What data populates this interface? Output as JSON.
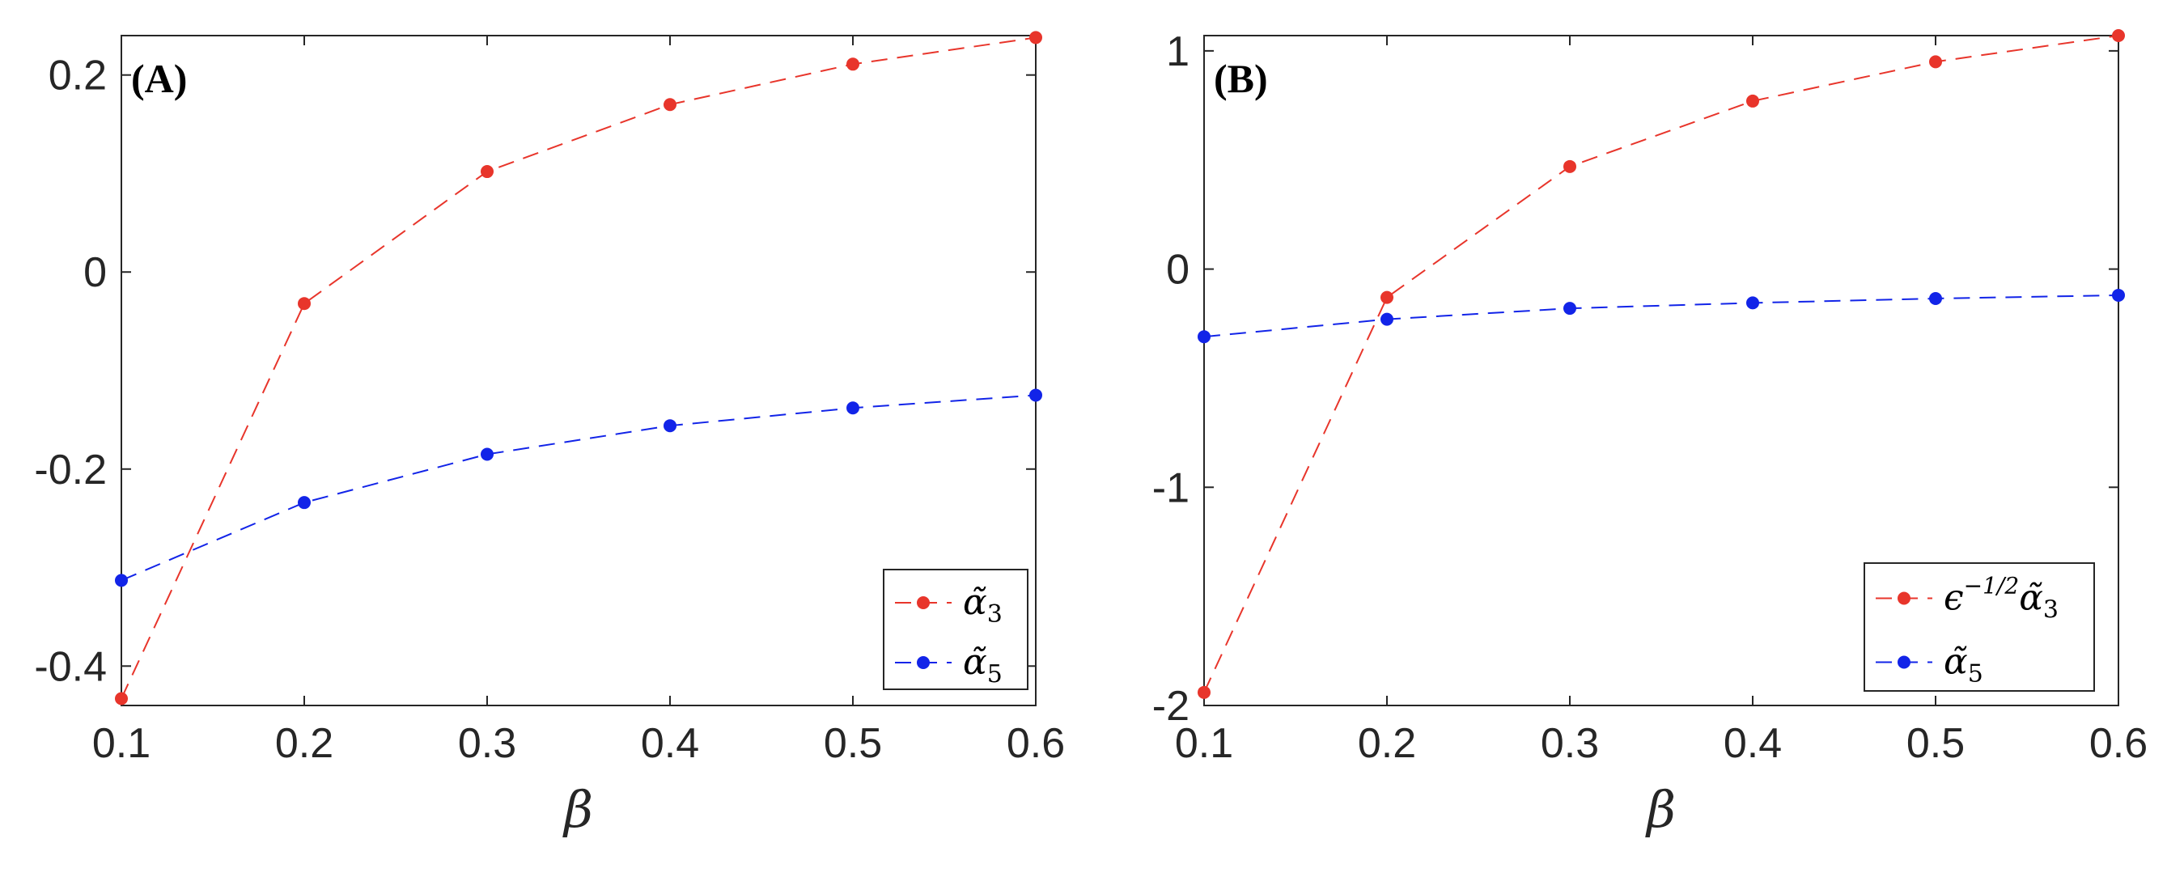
{
  "chart_data": [
    {
      "type": "line",
      "panel_label": "(A)",
      "xlabel": "β",
      "ylabel": "",
      "xlim": [
        0.1,
        0.6
      ],
      "ylim": [
        -0.44,
        0.24
      ],
      "x": [
        0.1,
        0.2,
        0.3,
        0.4,
        0.5,
        0.6
      ],
      "xticks": [
        "0.1",
        "0.2",
        "0.3",
        "0.4",
        "0.5",
        "0.6"
      ],
      "yticks": [
        {
          "value": 0.2,
          "label": "0.2"
        },
        {
          "value": 0,
          "label": "0"
        },
        {
          "value": -0.2,
          "label": "-0.2"
        },
        {
          "value": -0.4,
          "label": "-0.4"
        }
      ],
      "series": [
        {
          "name": "α̃3",
          "legend": {
            "base": "α̃",
            "sup": "",
            "sub": "3"
          },
          "color": "#e8352b",
          "marker": "circle",
          "line": "dashed",
          "values": [
            -0.433,
            -0.032,
            0.102,
            0.17,
            0.211,
            0.238
          ]
        },
        {
          "name": "α̃5",
          "legend": {
            "base": "α̃",
            "sup": "",
            "sub": "5"
          },
          "color": "#1224e8",
          "marker": "circle",
          "line": "dashed",
          "values": [
            -0.313,
            -0.234,
            -0.185,
            -0.156,
            -0.138,
            -0.125
          ]
        }
      ],
      "legend_position": "bottom-right",
      "grid": false
    },
    {
      "type": "line",
      "panel_label": "(B)",
      "xlabel": "β",
      "ylabel": "",
      "xlim": [
        0.1,
        0.6
      ],
      "ylim": [
        -2.0,
        1.07
      ],
      "x": [
        0.1,
        0.2,
        0.3,
        0.4,
        0.5,
        0.6
      ],
      "xticks": [
        "0.1",
        "0.2",
        "0.3",
        "0.4",
        "0.5",
        "0.6"
      ],
      "yticks": [
        {
          "value": 1,
          "label": "1"
        },
        {
          "value": 0,
          "label": "0"
        },
        {
          "value": -1,
          "label": "-1"
        },
        {
          "value": -2,
          "label": "-2"
        }
      ],
      "series": [
        {
          "name": "ϵ−1/2α̃3",
          "legend": {
            "base": "ϵ",
            "sup": "−1/2",
            "base2": "α̃",
            "sub": "3"
          },
          "color": "#e8352b",
          "marker": "circle",
          "line": "dashed",
          "values": [
            -1.94,
            -0.13,
            0.47,
            0.77,
            0.95,
            1.07
          ]
        },
        {
          "name": "α̃5",
          "legend": {
            "base": "α̃",
            "sup": "",
            "sub": "5"
          },
          "color": "#1224e8",
          "marker": "circle",
          "line": "dashed",
          "values": [
            -0.31,
            -0.23,
            -0.18,
            -0.155,
            -0.135,
            -0.12
          ]
        }
      ],
      "legend_position": "bottom-right",
      "grid": false
    }
  ]
}
